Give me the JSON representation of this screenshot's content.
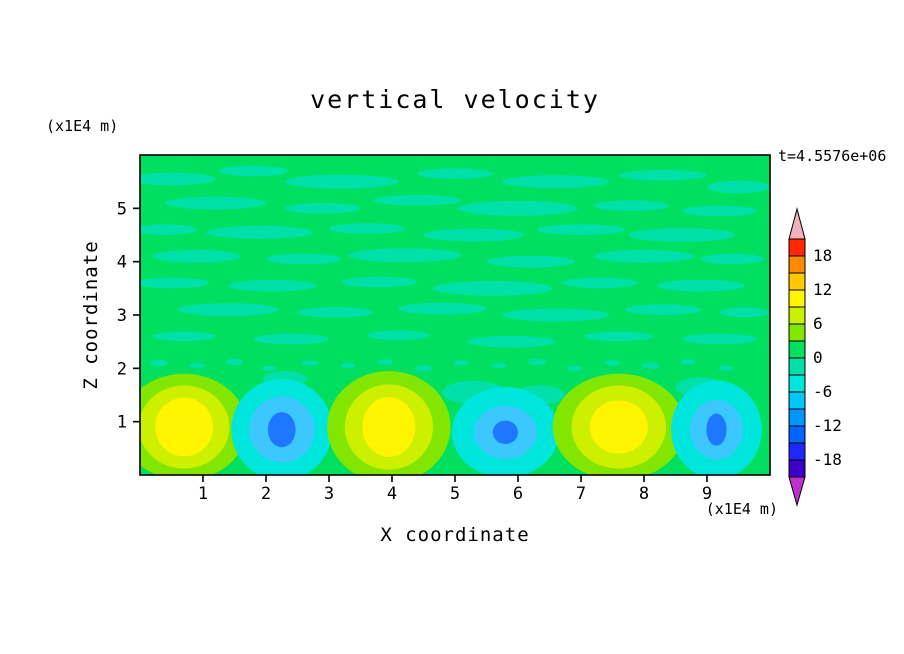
{
  "chart_data": {
    "type": "contour",
    "title": "vertical velocity",
    "annotation": "t=4.5576e+06",
    "xlabel": "X coordinate",
    "ylabel": "Z coordinate",
    "x_axis_unit": "(x1E4 m)",
    "y_axis_unit": "(x1E4 m)",
    "xlim": [
      0,
      10
    ],
    "ylim": [
      0,
      6
    ],
    "x_ticks": [
      "1",
      "2",
      "3",
      "4",
      "5",
      "6",
      "7",
      "8",
      "9"
    ],
    "y_ticks": [
      "1",
      "2",
      "3",
      "4",
      "5"
    ],
    "grid": false,
    "legend_position": "right-colorbar",
    "contour_interval": 3,
    "field": {
      "background_level_color": "#00DF5F",
      "noise_color": "#00E0A8",
      "noise_blobs": [
        [
          0.5,
          5.55,
          0.7,
          0.12
        ],
        [
          1.8,
          5.7,
          0.55,
          0.1
        ],
        [
          3.2,
          5.5,
          0.9,
          0.13
        ],
        [
          5.0,
          5.65,
          0.6,
          0.1
        ],
        [
          6.6,
          5.5,
          0.85,
          0.12
        ],
        [
          8.3,
          5.62,
          0.7,
          0.1
        ],
        [
          9.5,
          5.4,
          0.5,
          0.12
        ],
        [
          1.2,
          5.1,
          0.8,
          0.12
        ],
        [
          2.9,
          5.0,
          0.6,
          0.1
        ],
        [
          4.4,
          5.15,
          0.7,
          0.1
        ],
        [
          6.0,
          5.0,
          0.95,
          0.14
        ],
        [
          7.8,
          5.05,
          0.6,
          0.1
        ],
        [
          9.2,
          4.95,
          0.6,
          0.1
        ],
        [
          0.4,
          4.6,
          0.5,
          0.1
        ],
        [
          1.9,
          4.55,
          0.85,
          0.12
        ],
        [
          3.6,
          4.62,
          0.6,
          0.1
        ],
        [
          5.3,
          4.5,
          0.8,
          0.12
        ],
        [
          7.0,
          4.6,
          0.7,
          0.1
        ],
        [
          8.6,
          4.5,
          0.85,
          0.13
        ],
        [
          0.9,
          4.1,
          0.7,
          0.12
        ],
        [
          2.6,
          4.05,
          0.6,
          0.1
        ],
        [
          4.2,
          4.12,
          0.9,
          0.13
        ],
        [
          6.2,
          4.0,
          0.7,
          0.11
        ],
        [
          8.0,
          4.1,
          0.8,
          0.12
        ],
        [
          9.4,
          4.05,
          0.5,
          0.1
        ],
        [
          0.5,
          3.6,
          0.6,
          0.1
        ],
        [
          2.1,
          3.55,
          0.7,
          0.11
        ],
        [
          3.8,
          3.62,
          0.6,
          0.1
        ],
        [
          5.6,
          3.5,
          0.95,
          0.14
        ],
        [
          7.3,
          3.6,
          0.6,
          0.1
        ],
        [
          8.9,
          3.55,
          0.7,
          0.11
        ],
        [
          1.4,
          3.1,
          0.8,
          0.12
        ],
        [
          3.1,
          3.05,
          0.6,
          0.1
        ],
        [
          4.8,
          3.12,
          0.7,
          0.11
        ],
        [
          6.6,
          3.0,
          0.85,
          0.12
        ],
        [
          8.3,
          3.1,
          0.6,
          0.1
        ],
        [
          9.6,
          3.05,
          0.4,
          0.09
        ],
        [
          0.7,
          2.6,
          0.5,
          0.09
        ],
        [
          2.4,
          2.55,
          0.6,
          0.1
        ],
        [
          4.1,
          2.62,
          0.5,
          0.09
        ],
        [
          5.9,
          2.5,
          0.7,
          0.11
        ],
        [
          7.6,
          2.6,
          0.55,
          0.09
        ],
        [
          9.2,
          2.55,
          0.6,
          0.1
        ],
        [
          0.3,
          2.1,
          0.14,
          0.06
        ],
        [
          0.9,
          2.05,
          0.12,
          0.05
        ],
        [
          1.5,
          2.12,
          0.14,
          0.06
        ],
        [
          2.05,
          2.0,
          0.12,
          0.05
        ],
        [
          2.7,
          2.1,
          0.14,
          0.05
        ],
        [
          3.3,
          2.05,
          0.12,
          0.05
        ],
        [
          3.9,
          2.12,
          0.12,
          0.05
        ],
        [
          4.5,
          2.0,
          0.14,
          0.06
        ],
        [
          5.1,
          2.1,
          0.12,
          0.05
        ],
        [
          5.7,
          2.05,
          0.12,
          0.05
        ],
        [
          6.3,
          2.12,
          0.14,
          0.06
        ],
        [
          6.9,
          2.0,
          0.12,
          0.05
        ],
        [
          7.5,
          2.1,
          0.12,
          0.05
        ],
        [
          8.1,
          2.05,
          0.14,
          0.06
        ],
        [
          8.7,
          2.12,
          0.12,
          0.05
        ],
        [
          9.3,
          2.0,
          0.12,
          0.05
        ],
        [
          5.3,
          1.55,
          0.5,
          0.22
        ],
        [
          6.35,
          1.5,
          0.4,
          0.18
        ],
        [
          8.9,
          1.65,
          0.4,
          0.18
        ],
        [
          2.3,
          1.8,
          0.35,
          0.15
        ]
      ],
      "cells": [
        {
          "name": "updraft-1",
          "kind": "updraft",
          "x": 0.7,
          "z": 0.9,
          "peak_estimate": 11,
          "rings": [
            [
              1.0,
              1.0,
              "#82E600"
            ],
            [
              0.72,
              0.78,
              "#CDEF00"
            ],
            [
              0.46,
              0.55,
              "#FFF500"
            ]
          ]
        },
        {
          "name": "downdraft-1",
          "kind": "downdraft",
          "x": 2.25,
          "z": 0.85,
          "peak_estimate": -11,
          "rings": [
            [
              0.8,
              0.95,
              "#00E6DC"
            ],
            [
              0.52,
              0.62,
              "#3CC8FF"
            ],
            [
              0.22,
              0.33,
              "#1E78FF"
            ]
          ]
        },
        {
          "name": "updraft-2",
          "kind": "updraft",
          "x": 3.95,
          "z": 0.9,
          "peak_estimate": 11,
          "rings": [
            [
              0.98,
              1.05,
              "#82E600"
            ],
            [
              0.7,
              0.8,
              "#CDEF00"
            ],
            [
              0.42,
              0.56,
              "#FFF500"
            ]
          ]
        },
        {
          "name": "downdraft-2",
          "kind": "downdraft",
          "x": 5.8,
          "z": 0.8,
          "peak_estimate": -8,
          "rings": [
            [
              0.85,
              0.85,
              "#00E6DC"
            ],
            [
              0.5,
              0.5,
              "#3CC8FF"
            ],
            [
              0.2,
              0.22,
              "#1E78FF"
            ]
          ]
        },
        {
          "name": "updraft-3",
          "kind": "updraft",
          "x": 7.6,
          "z": 0.9,
          "peak_estimate": 11,
          "rings": [
            [
              1.05,
              1.0,
              "#82E600"
            ],
            [
              0.75,
              0.78,
              "#CDEF00"
            ],
            [
              0.46,
              0.5,
              "#FFF500"
            ]
          ]
        },
        {
          "name": "downdraft-3",
          "kind": "downdraft",
          "x": 9.15,
          "z": 0.85,
          "peak_estimate": -9,
          "rings": [
            [
              0.72,
              0.92,
              "#00E6DC"
            ],
            [
              0.42,
              0.56,
              "#3CC8FF"
            ],
            [
              0.16,
              0.3,
              "#1E78FF"
            ]
          ]
        }
      ]
    },
    "colorbar": {
      "range": [
        -21,
        21
      ],
      "step": 3,
      "segment_colors_bottom_to_top": [
        "#3C00C8",
        "#1E28FF",
        "#0064FF",
        "#0096FF",
        "#00C8FF",
        "#00E6DC",
        "#00E0A8",
        "#00DF5F",
        "#82E600",
        "#C8F000",
        "#FFF500",
        "#FFC800",
        "#FF8C00",
        "#FF2800"
      ],
      "labels": [
        {
          "value": 18,
          "text": "18"
        },
        {
          "value": 12,
          "text": "12"
        },
        {
          "value": 6,
          "text": "6"
        },
        {
          "value": 0,
          "text": "0"
        },
        {
          "value": -6,
          "text": "-6"
        },
        {
          "value": -12,
          "text": "-12"
        },
        {
          "value": -18,
          "text": "-18"
        }
      ],
      "arrow_top_color": "#F2B0BE",
      "arrow_bottom_color": "#BE32D2"
    }
  }
}
